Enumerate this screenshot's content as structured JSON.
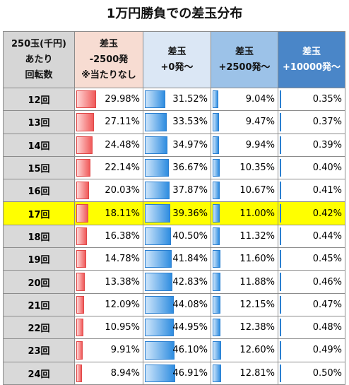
{
  "title": "1万円勝負での差玉分布",
  "headers": {
    "col0": [
      "250玉(千円)",
      "あたり",
      "回転数"
    ],
    "col1": [
      "差玉",
      "-2500発",
      "※当たりなし"
    ],
    "col2": [
      "差玉",
      "+0発～"
    ],
    "col3": [
      "差玉",
      "+2500発～"
    ],
    "col4": [
      "差玉",
      "+10000発～"
    ]
  },
  "highlight_row": "17回",
  "rows": [
    {
      "label": "12回",
      "v": [
        "29.98%",
        "31.52%",
        "9.04%",
        "0.35%"
      ]
    },
    {
      "label": "13回",
      "v": [
        "27.11%",
        "33.53%",
        "9.47%",
        "0.37%"
      ]
    },
    {
      "label": "14回",
      "v": [
        "24.48%",
        "34.97%",
        "9.94%",
        "0.39%"
      ]
    },
    {
      "label": "15回",
      "v": [
        "22.14%",
        "36.67%",
        "10.35%",
        "0.40%"
      ]
    },
    {
      "label": "16回",
      "v": [
        "20.03%",
        "37.87%",
        "10.67%",
        "0.41%"
      ]
    },
    {
      "label": "17回",
      "v": [
        "18.11%",
        "39.36%",
        "11.00%",
        "0.42%"
      ]
    },
    {
      "label": "18回",
      "v": [
        "16.38%",
        "40.50%",
        "11.32%",
        "0.44%"
      ]
    },
    {
      "label": "19回",
      "v": [
        "14.78%",
        "41.84%",
        "11.60%",
        "0.45%"
      ]
    },
    {
      "label": "20回",
      "v": [
        "13.38%",
        "42.83%",
        "11.88%",
        "0.46%"
      ]
    },
    {
      "label": "21回",
      "v": [
        "12.09%",
        "44.08%",
        "12.15%",
        "0.47%"
      ]
    },
    {
      "label": "22回",
      "v": [
        "10.95%",
        "44.95%",
        "12.38%",
        "0.48%"
      ]
    },
    {
      "label": "23回",
      "v": [
        "9.91%",
        "46.10%",
        "12.60%",
        "0.49%"
      ]
    },
    {
      "label": "24回",
      "v": [
        "8.94%",
        "46.91%",
        "12.81%",
        "0.50%"
      ]
    }
  ],
  "colors": {
    "neg_bar": "#f05a5a",
    "pos_bar": "#2f8de0",
    "highlight": "#ffff00"
  }
}
